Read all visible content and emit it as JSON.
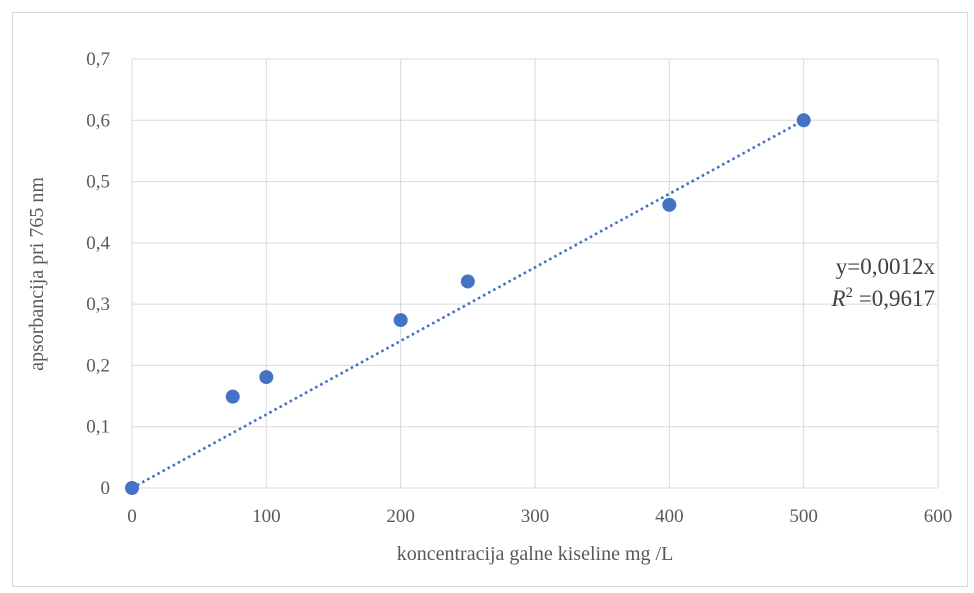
{
  "chart_data": {
    "type": "scatter",
    "xlabel": "koncentracija galne kiseline mg /L",
    "ylabel": "apsorbancija pri 765 nm",
    "xlim": [
      0,
      600
    ],
    "ylim": [
      0,
      0.7
    ],
    "xticks": [
      0,
      100,
      200,
      300,
      400,
      500,
      600
    ],
    "xtick_labels": [
      "0",
      "100",
      "200",
      "300",
      "400",
      "500",
      "600"
    ],
    "yticks": [
      0,
      0.1,
      0.2,
      0.3,
      0.4,
      0.5,
      0.6,
      0.7
    ],
    "ytick_labels": [
      "0",
      "0,1",
      "0,2",
      "0,3",
      "0,4",
      "0,5",
      "0,6",
      "0,7"
    ],
    "grid": true,
    "series": [
      {
        "x": [
          0,
          75,
          100,
          200,
          250,
          400,
          500
        ],
        "y": [
          0,
          0.149,
          0.181,
          0.274,
          0.337,
          0.462,
          0.6
        ],
        "color": "#4472c4"
      }
    ],
    "trendline": {
      "type": "linear",
      "slope": 0.0012,
      "intercept": 0,
      "x_range": [
        0,
        500
      ],
      "style": "dotted",
      "color": "#4472c4"
    },
    "annotation": {
      "equation": "y=0,0012x",
      "r2_symbol": "R",
      "r2_exp": "2",
      "r2_value": " =0,9617"
    }
  }
}
